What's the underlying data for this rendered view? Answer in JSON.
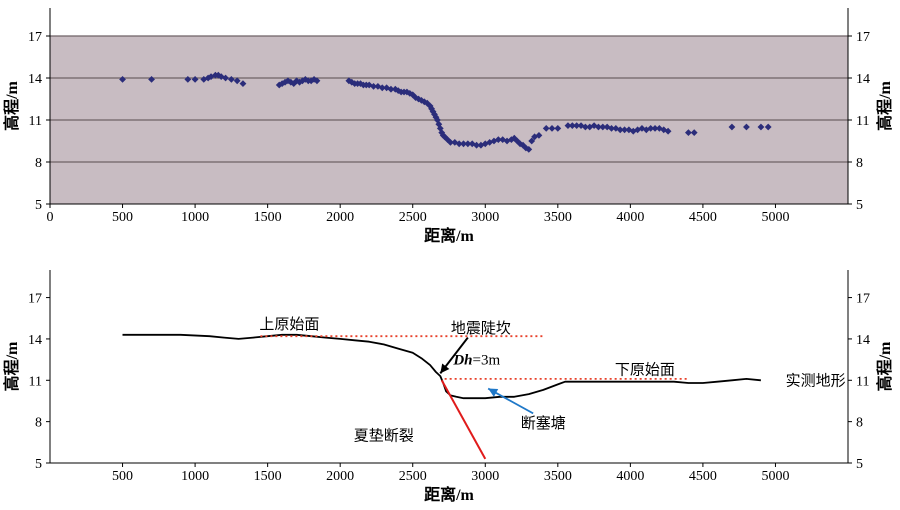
{
  "chart_data": [
    {
      "type": "scatter",
      "xlabel": "距离/m",
      "ylabel": "高程/m",
      "ylabel_right": "高程/m",
      "xlim": [
        0,
        5500
      ],
      "ylim": [
        5,
        19
      ],
      "xticks": [
        0,
        500,
        1000,
        1500,
        2000,
        2500,
        3000,
        3500,
        4000,
        4500,
        5000
      ],
      "yticks": [
        5,
        8,
        11,
        14,
        17
      ],
      "grid": true,
      "colors": {
        "background": "#c8bcc2",
        "points": "#2b2d7a",
        "grid": "#6e6266"
      },
      "series": [
        {
          "points": [
            [
              500,
              13.9
            ],
            [
              700,
              13.9
            ],
            [
              950,
              13.9
            ],
            [
              1000,
              13.9
            ],
            [
              1060,
              13.9
            ],
            [
              1090,
              14.0
            ],
            [
              1110,
              14.1
            ],
            [
              1140,
              14.2
            ],
            [
              1160,
              14.2
            ],
            [
              1180,
              14.1
            ],
            [
              1210,
              14.0
            ],
            [
              1250,
              13.9
            ],
            [
              1290,
              13.8
            ],
            [
              1330,
              13.6
            ],
            [
              1580,
              13.5
            ],
            [
              1600,
              13.6
            ],
            [
              1620,
              13.7
            ],
            [
              1640,
              13.8
            ],
            [
              1660,
              13.7
            ],
            [
              1680,
              13.6
            ],
            [
              1700,
              13.8
            ],
            [
              1720,
              13.7
            ],
            [
              1740,
              13.8
            ],
            [
              1760,
              13.9
            ],
            [
              1780,
              13.8
            ],
            [
              1800,
              13.8
            ],
            [
              1820,
              13.9
            ],
            [
              1840,
              13.8
            ],
            [
              2060,
              13.8
            ],
            [
              2080,
              13.7
            ],
            [
              2100,
              13.6
            ],
            [
              2120,
              13.6
            ],
            [
              2140,
              13.6
            ],
            [
              2160,
              13.5
            ],
            [
              2180,
              13.5
            ],
            [
              2200,
              13.5
            ],
            [
              2230,
              13.4
            ],
            [
              2260,
              13.4
            ],
            [
              2290,
              13.3
            ],
            [
              2320,
              13.3
            ],
            [
              2350,
              13.2
            ],
            [
              2380,
              13.2
            ],
            [
              2400,
              13.1
            ],
            [
              2420,
              13.0
            ],
            [
              2440,
              13.0
            ],
            [
              2460,
              13.0
            ],
            [
              2480,
              12.9
            ],
            [
              2500,
              12.8
            ],
            [
              2520,
              12.6
            ],
            [
              2540,
              12.5
            ],
            [
              2560,
              12.4
            ],
            [
              2580,
              12.3
            ],
            [
              2600,
              12.2
            ],
            [
              2620,
              12.0
            ],
            [
              2630,
              11.8
            ],
            [
              2640,
              11.6
            ],
            [
              2650,
              11.4
            ],
            [
              2660,
              11.2
            ],
            [
              2670,
              11.0
            ],
            [
              2680,
              10.7
            ],
            [
              2690,
              10.4
            ],
            [
              2700,
              10.1
            ],
            [
              2710,
              9.9
            ],
            [
              2720,
              9.8
            ],
            [
              2740,
              9.6
            ],
            [
              2760,
              9.4
            ],
            [
              2790,
              9.4
            ],
            [
              2820,
              9.3
            ],
            [
              2850,
              9.3
            ],
            [
              2880,
              9.3
            ],
            [
              2910,
              9.3
            ],
            [
              2940,
              9.2
            ],
            [
              2970,
              9.2
            ],
            [
              3000,
              9.3
            ],
            [
              3030,
              9.4
            ],
            [
              3060,
              9.5
            ],
            [
              3090,
              9.6
            ],
            [
              3120,
              9.6
            ],
            [
              3150,
              9.5
            ],
            [
              3180,
              9.6
            ],
            [
              3200,
              9.7
            ],
            [
              3220,
              9.5
            ],
            [
              3240,
              9.3
            ],
            [
              3260,
              9.2
            ],
            [
              3280,
              9.0
            ],
            [
              3300,
              8.9
            ],
            [
              3320,
              9.5
            ],
            [
              3340,
              9.8
            ],
            [
              3370,
              9.9
            ],
            [
              3420,
              10.4
            ],
            [
              3460,
              10.4
            ],
            [
              3500,
              10.4
            ],
            [
              3570,
              10.6
            ],
            [
              3600,
              10.6
            ],
            [
              3630,
              10.6
            ],
            [
              3660,
              10.6
            ],
            [
              3690,
              10.5
            ],
            [
              3720,
              10.5
            ],
            [
              3750,
              10.6
            ],
            [
              3780,
              10.5
            ],
            [
              3810,
              10.5
            ],
            [
              3840,
              10.5
            ],
            [
              3870,
              10.4
            ],
            [
              3900,
              10.4
            ],
            [
              3930,
              10.3
            ],
            [
              3960,
              10.3
            ],
            [
              3990,
              10.3
            ],
            [
              4020,
              10.2
            ],
            [
              4050,
              10.3
            ],
            [
              4080,
              10.4
            ],
            [
              4110,
              10.3
            ],
            [
              4140,
              10.4
            ],
            [
              4170,
              10.4
            ],
            [
              4200,
              10.4
            ],
            [
              4230,
              10.3
            ],
            [
              4260,
              10.2
            ],
            [
              4400,
              10.1
            ],
            [
              4440,
              10.1
            ],
            [
              4700,
              10.5
            ],
            [
              4800,
              10.5
            ],
            [
              4900,
              10.5
            ],
            [
              4950,
              10.5
            ]
          ]
        }
      ]
    },
    {
      "type": "line",
      "xlabel": "距离/m",
      "ylabel": "高程/m",
      "ylabel_right": "高程/m",
      "xlim": [
        0,
        5500
      ],
      "ylim": [
        5,
        19
      ],
      "xticks": [
        500,
        1000,
        1500,
        2000,
        2500,
        3000,
        3500,
        4000,
        4500,
        5000
      ],
      "yticks": [
        5,
        8,
        11,
        14,
        17
      ],
      "grid": false,
      "colors": {
        "profile": "#000000",
        "fault": "#e01b1b",
        "surface": "#e8402a",
        "arrow_blue": "#1f78c8"
      },
      "series": [
        {
          "name": "实测地形",
          "x": [
            500,
            700,
            900,
            1100,
            1200,
            1300,
            1400,
            1500,
            1600,
            1700,
            1800,
            1900,
            2000,
            2100,
            2200,
            2300,
            2400,
            2500,
            2560,
            2620,
            2660,
            2690,
            2710,
            2730,
            2760,
            2800,
            2850,
            2900,
            3000,
            3100,
            3200,
            3300,
            3400,
            3500,
            3550,
            3600,
            3700,
            3800,
            3900,
            4000,
            4100,
            4200,
            4300,
            4400,
            4500,
            4600,
            4700,
            4800,
            4900
          ],
          "y": [
            14.3,
            14.3,
            14.3,
            14.2,
            14.1,
            14.0,
            14.1,
            14.2,
            14.3,
            14.3,
            14.2,
            14.1,
            14.0,
            13.9,
            13.8,
            13.6,
            13.3,
            13.0,
            12.6,
            12.1,
            11.6,
            11.3,
            10.8,
            10.2,
            9.9,
            9.8,
            9.7,
            9.7,
            9.7,
            9.8,
            9.8,
            10.0,
            10.3,
            10.7,
            10.9,
            10.9,
            10.9,
            10.9,
            10.9,
            10.9,
            10.9,
            10.9,
            10.9,
            10.8,
            10.8,
            10.9,
            11.0,
            11.1,
            11.0
          ]
        },
        {
          "x": [
            1450,
            3400
          ],
          "y": [
            14.2,
            14.2
          ]
        },
        {
          "x": [
            2720,
            4400
          ],
          "y": [
            11.1,
            11.1
          ]
        },
        {
          "x": [
            2700,
            3000
          ],
          "y": [
            11.0,
            5.3
          ]
        }
      ],
      "annotations": [
        {
          "text": "上原始面",
          "x": 1650,
          "y": 15.1
        },
        {
          "text": "地震陡坎",
          "x": 2970,
          "y": 14.8
        },
        {
          "text": "下原始面",
          "x": 4100,
          "y": 11.8
        },
        {
          "text": "实测地形",
          "x": 5070,
          "y": 11.0
        },
        {
          "text": "夏垫断裂",
          "x": 2300,
          "y": 7.0
        },
        {
          "text": "断塞塘",
          "x": 3400,
          "y": 7.9
        }
      ],
      "dh_label": {
        "italic": "Dh",
        "rest": "=3m",
        "x": 2780,
        "y": 12.5
      }
    }
  ]
}
